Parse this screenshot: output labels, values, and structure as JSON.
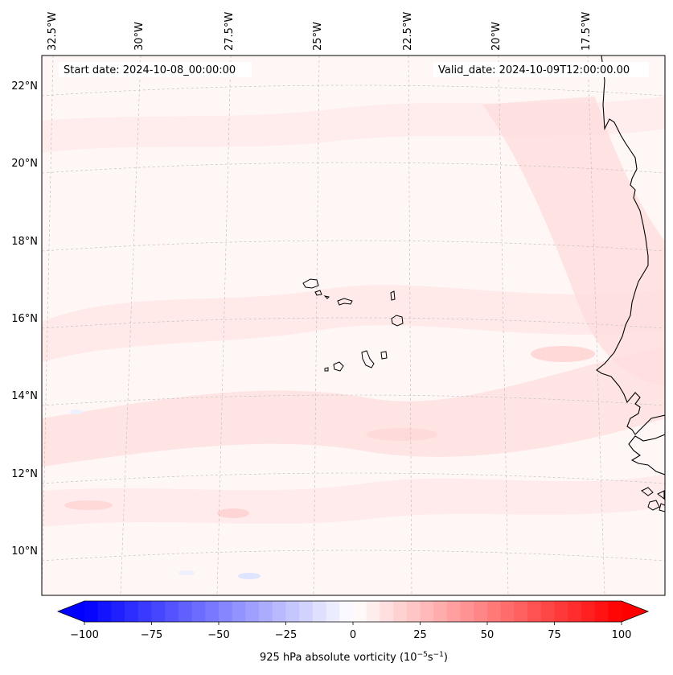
{
  "map": {
    "start_label": "Start date: 2024-10-08_00:00:00",
    "valid_label": "Valid_date: 2024-10-09T12:00:00.00",
    "lon_labels": [
      "32.5°W",
      "30°W",
      "27.5°W",
      "25°W",
      "22.5°W",
      "20°W",
      "17.5°W"
    ],
    "lat_labels": [
      "22°N",
      "20°N",
      "18°N",
      "16°N",
      "14°N",
      "12°N",
      "10°N"
    ],
    "coastline_color": "#000000",
    "gridline_color": "#bbbbbb"
  },
  "colorbar": {
    "title": "925 hPa absolute vorticity (10",
    "title_exp1": "−5",
    "title_mid": "s",
    "title_exp2": "−1",
    "title_end": ")",
    "ticks": [
      "−100",
      "−75",
      "−50",
      "−25",
      "0",
      "25",
      "50",
      "75",
      "100"
    ],
    "min_color": "#0000ff",
    "mid_color": "#ffffff",
    "max_color": "#ff0000",
    "levels": 40,
    "extend": "both"
  }
}
